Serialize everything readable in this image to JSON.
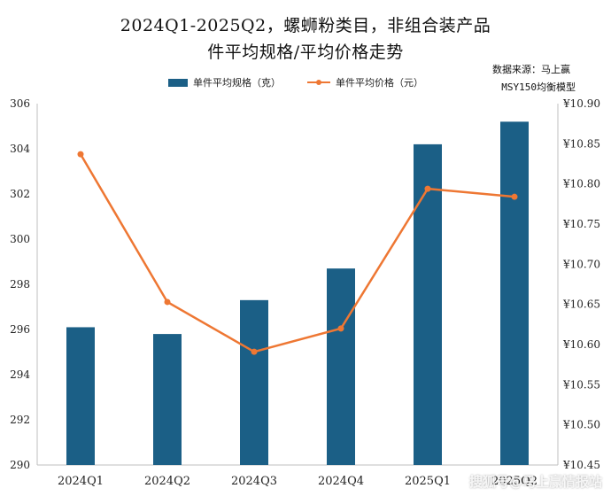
{
  "chart_data": {
    "type": "bar",
    "title_line1": "2024Q1-2025Q2，螺蛳粉类目，非组合装产品",
    "title_line2": "件平均规格/平均价格走势",
    "source_line1": "数据来源：马上赢",
    "source_line2": "MSY150均衡模型",
    "categories": [
      "2024Q1",
      "2024Q2",
      "2024Q3",
      "2024Q4",
      "2025Q1",
      "2025Q2"
    ],
    "series": [
      {
        "name": "单件平均规格（克）",
        "type": "bar",
        "axis": "left",
        "color": "#1b5f86",
        "values": [
          296.1,
          295.8,
          297.3,
          298.7,
          304.2,
          305.2
        ]
      },
      {
        "name": "单件平均价格（元）",
        "type": "line",
        "axis": "right",
        "color": "#ee7733",
        "values": [
          10.837,
          10.653,
          10.591,
          10.62,
          10.794,
          10.784
        ]
      }
    ],
    "y_left": {
      "min": 290,
      "max": 306,
      "step": 2,
      "ticks": [
        "290",
        "292",
        "294",
        "296",
        "298",
        "300",
        "302",
        "304",
        "306"
      ]
    },
    "y_right": {
      "min": 10.45,
      "max": 10.9,
      "step": 0.05,
      "ticks": [
        "¥10.45",
        "¥10.50",
        "¥10.55",
        "¥10.60",
        "¥10.65",
        "¥10.70",
        "¥10.75",
        "¥10.80",
        "¥10.85",
        "¥10.90"
      ]
    },
    "grid": false,
    "legend_position": "top"
  },
  "watermark": "搜狐号@马上赢情报站"
}
